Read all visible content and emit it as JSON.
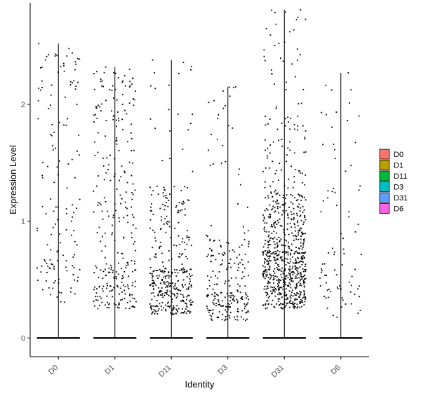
{
  "chart_data": {
    "type": "violin-jitter",
    "title": "",
    "xlabel": "Identity",
    "ylabel": "Expression Level",
    "ylim": [
      -0.16,
      2.87
    ],
    "yticks": [
      0,
      1,
      2
    ],
    "categories": [
      "D0",
      "D1",
      "D11",
      "D3",
      "D31",
      "D6"
    ],
    "legend": {
      "position": "right",
      "entries": [
        {
          "label": "D0",
          "color": "#F8766D"
        },
        {
          "label": "D1",
          "color": "#B79F00"
        },
        {
          "label": "D11",
          "color": "#00BA38"
        },
        {
          "label": "D3",
          "color": "#00BFC4"
        },
        {
          "label": "D31",
          "color": "#619CFF"
        },
        {
          "label": "D6",
          "color": "#F564E3"
        }
      ]
    },
    "series": [
      {
        "category": "D0",
        "max": 2.52,
        "bands": [
          [
            0.3,
            0.75,
            50
          ],
          [
            0.75,
            1.3,
            30
          ],
          [
            1.3,
            2.05,
            30
          ],
          [
            2.05,
            2.52,
            35
          ]
        ]
      },
      {
        "category": "D1",
        "max": 2.32,
        "bands": [
          [
            0.25,
            0.65,
            120
          ],
          [
            0.65,
            1.25,
            60
          ],
          [
            1.25,
            1.85,
            45
          ],
          [
            1.85,
            2.32,
            60
          ]
        ]
      },
      {
        "category": "D11",
        "max": 2.38,
        "bands": [
          [
            0.2,
            0.6,
            250
          ],
          [
            0.6,
            1.3,
            110
          ],
          [
            1.3,
            2.05,
            12
          ],
          [
            2.05,
            2.38,
            8
          ]
        ]
      },
      {
        "category": "D3",
        "max": 2.15,
        "bands": [
          [
            0.15,
            0.4,
            120
          ],
          [
            0.4,
            0.9,
            85
          ],
          [
            0.9,
            1.6,
            12
          ],
          [
            1.6,
            2.15,
            16
          ]
        ]
      },
      {
        "category": "D31",
        "max": 2.81,
        "bands": [
          [
            0.25,
            0.75,
            440
          ],
          [
            0.75,
            1.25,
            220
          ],
          [
            1.25,
            1.9,
            70
          ],
          [
            1.9,
            2.81,
            35
          ]
        ]
      },
      {
        "category": "D6",
        "max": 2.27,
        "bands": [
          [
            0.15,
            0.6,
            40
          ],
          [
            0.6,
            1.3,
            25
          ],
          [
            1.3,
            2.27,
            18
          ]
        ]
      }
    ]
  }
}
